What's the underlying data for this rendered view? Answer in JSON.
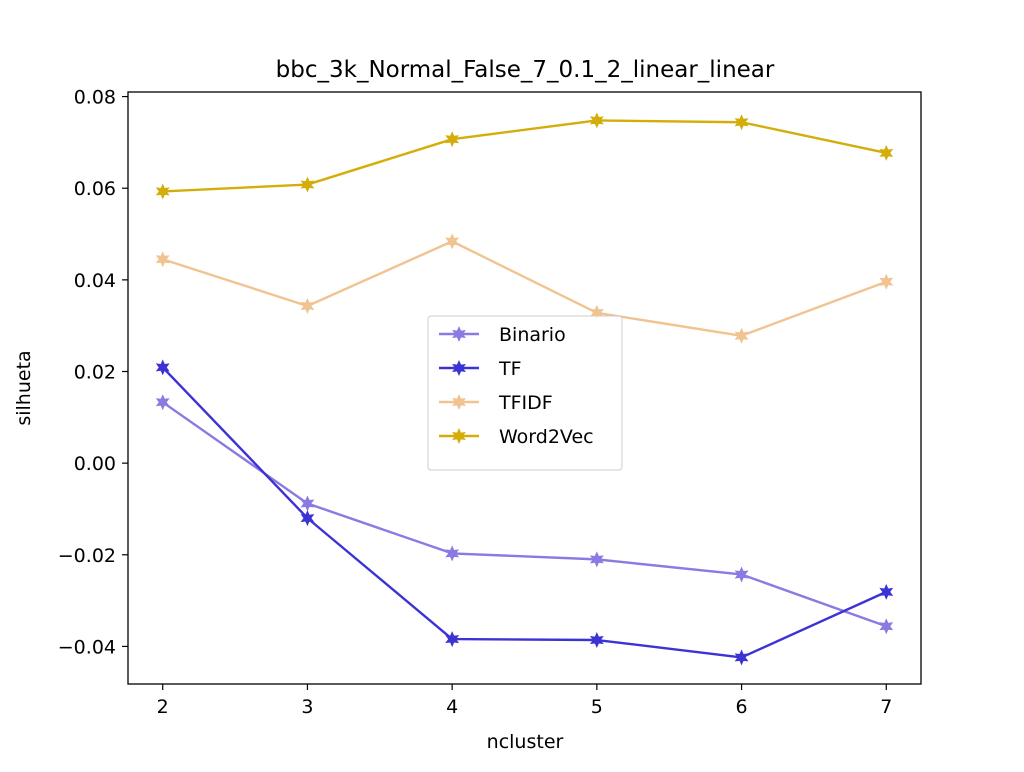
{
  "chart_data": {
    "type": "line",
    "title": "bbc_3k_Normal_False_7_0.1_2_linear_linear",
    "xlabel": "ncluster",
    "ylabel": "silhueta",
    "x": [
      2,
      3,
      4,
      5,
      6,
      7
    ],
    "xticks": [
      "2",
      "3",
      "4",
      "5",
      "6",
      "7"
    ],
    "yticks": [
      {
        "value": 0.08,
        "label": "0.08"
      },
      {
        "value": 0.06,
        "label": "0.06"
      },
      {
        "value": 0.04,
        "label": "0.04"
      },
      {
        "value": 0.02,
        "label": "0.02"
      },
      {
        "value": 0.0,
        "label": "0.00"
      },
      {
        "value": -0.02,
        "label": "−0.02"
      },
      {
        "value": -0.04,
        "label": "−0.04"
      }
    ],
    "xlim": [
      1.76,
      7.24
    ],
    "ylim": [
      -0.0482,
      0.081
    ],
    "grid": false,
    "legend_position": "center",
    "series": [
      {
        "name": "Binario",
        "color": "#8d79e2",
        "values": [
          0.0133,
          -0.0088,
          -0.0197,
          -0.021,
          -0.0243,
          -0.0356
        ]
      },
      {
        "name": "TF",
        "color": "#3c33d4",
        "values": [
          0.0209,
          -0.012,
          -0.0384,
          -0.0386,
          -0.0424,
          -0.0281
        ]
      },
      {
        "name": "TFIDF",
        "color": "#f0c390",
        "values": [
          0.0445,
          0.0343,
          0.0484,
          0.0328,
          0.0278,
          0.0396
        ]
      },
      {
        "name": "Word2Vec",
        "color": "#d5ad0a",
        "values": [
          0.0593,
          0.0608,
          0.0707,
          0.0748,
          0.0744,
          0.0677
        ]
      }
    ]
  }
}
